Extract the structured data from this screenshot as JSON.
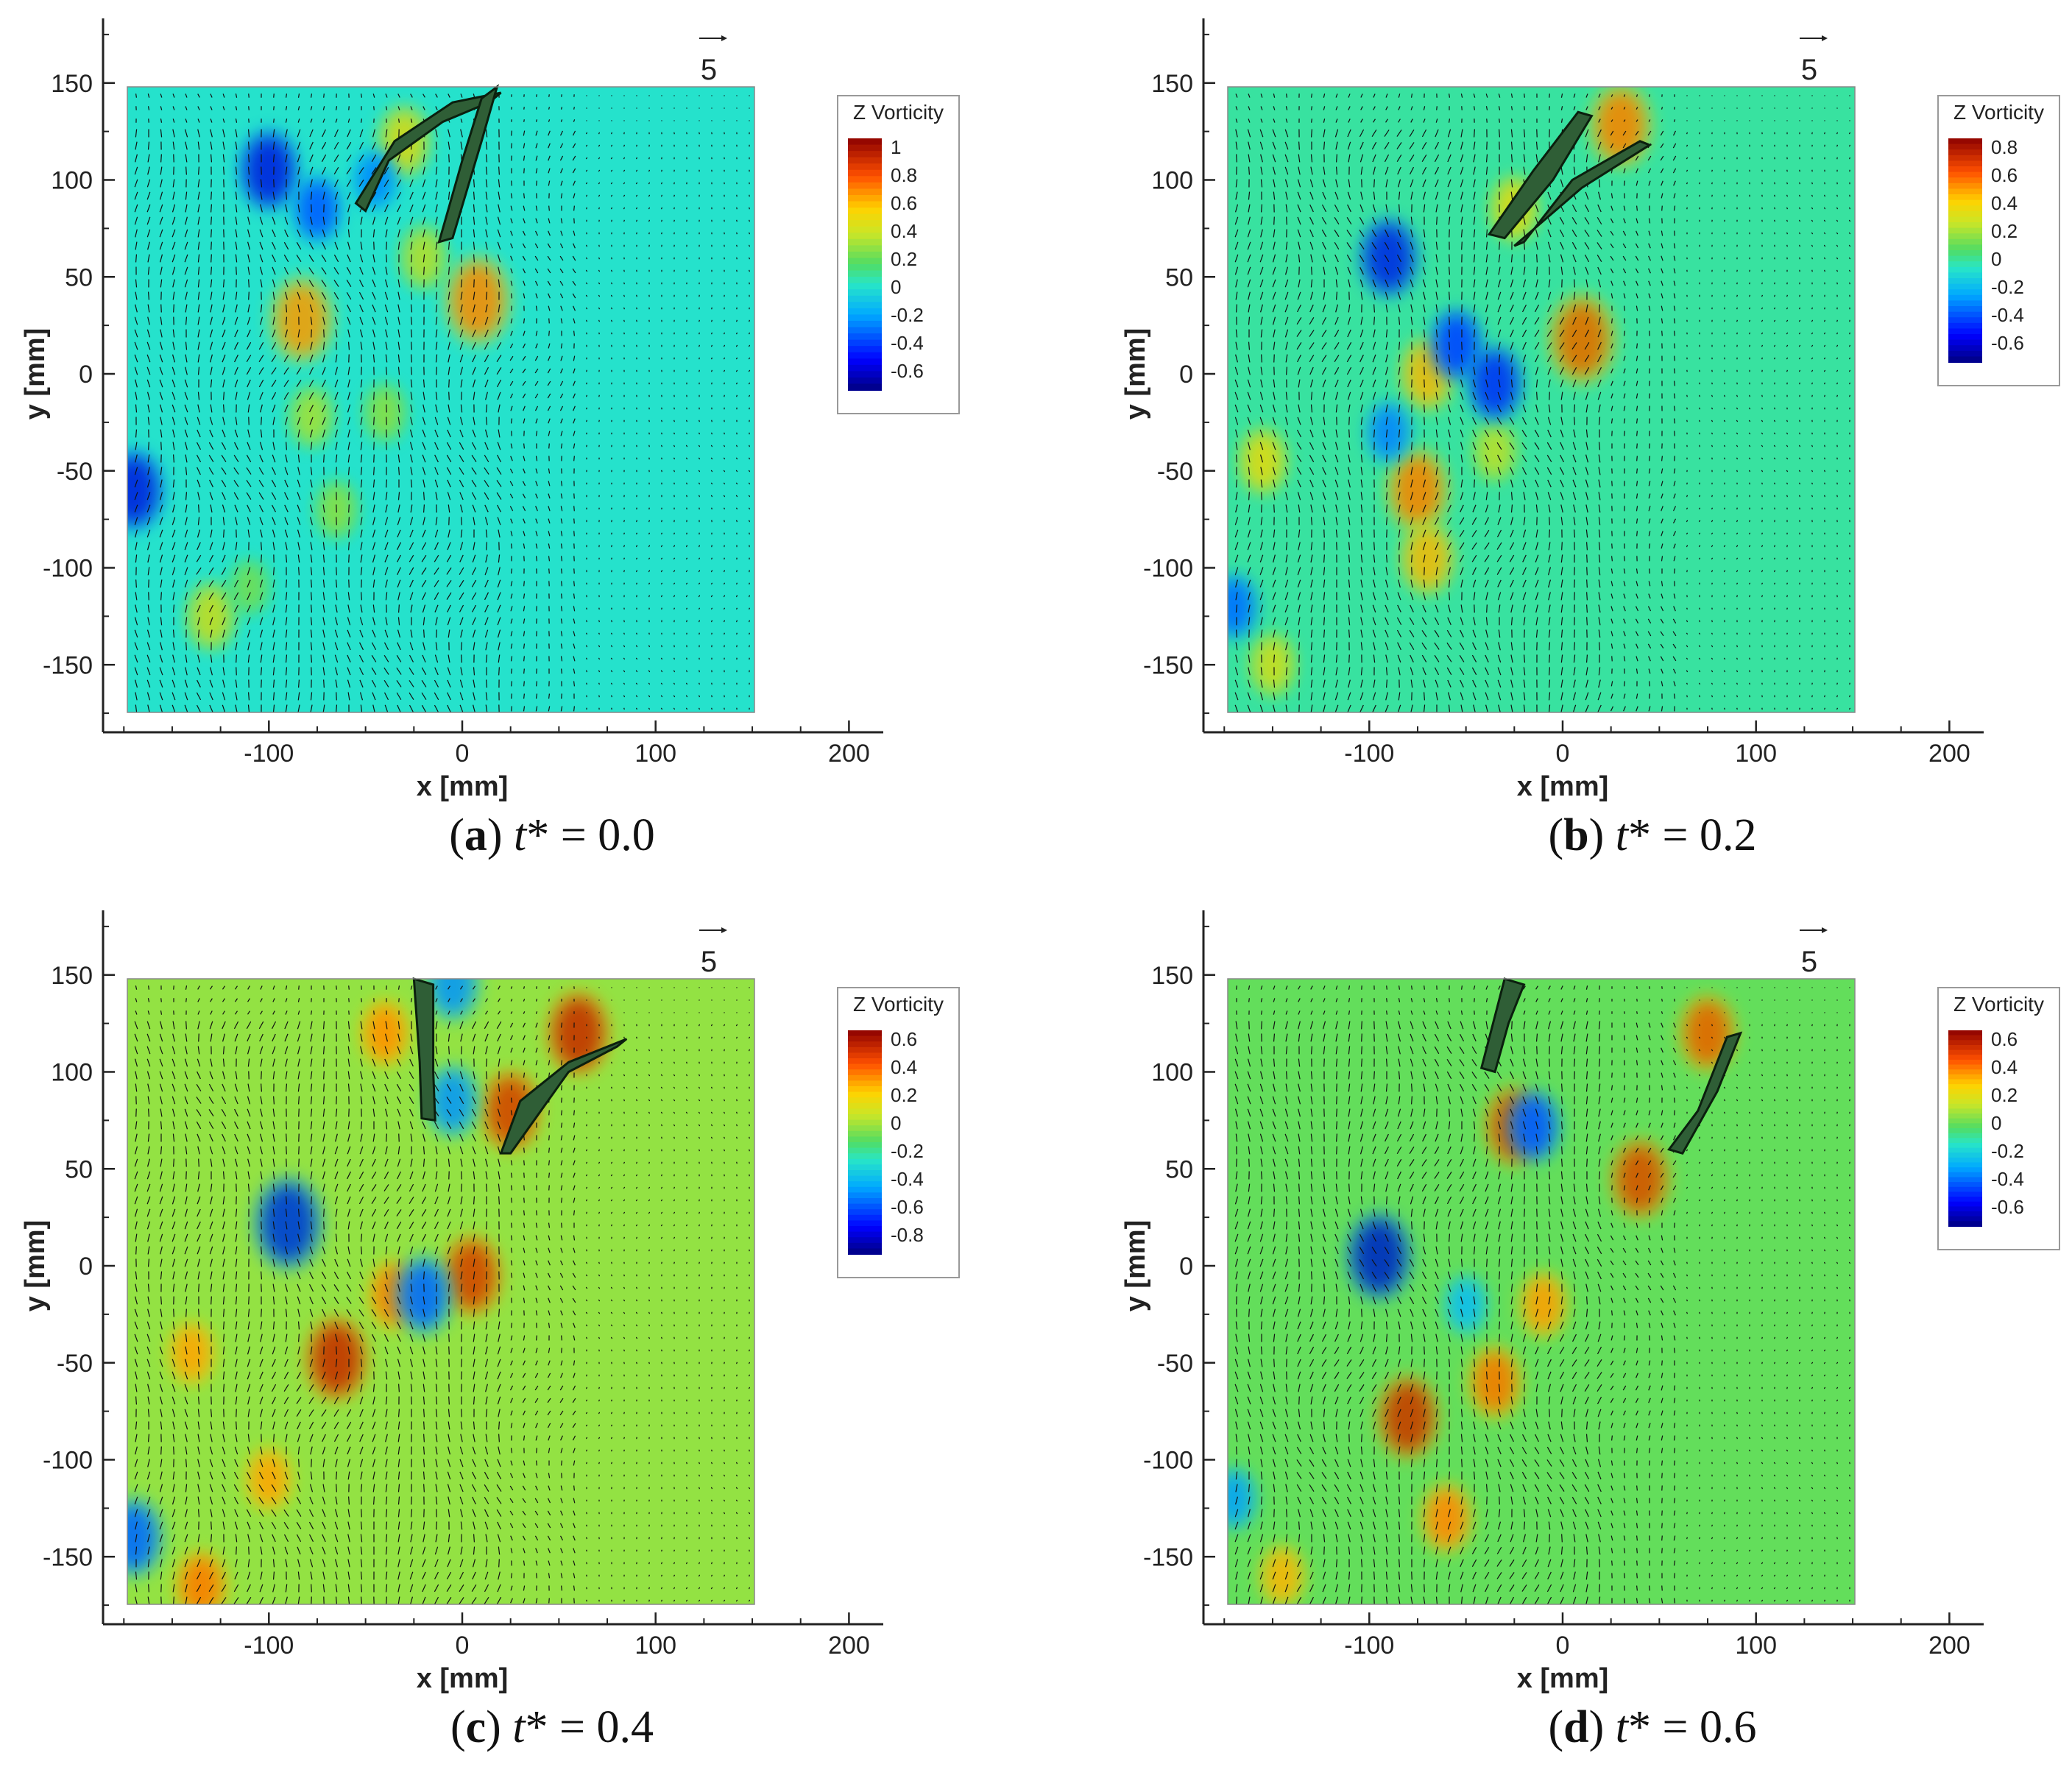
{
  "figure": {
    "x_axis_label": "x [mm]",
    "y_axis_label": "y [mm]",
    "colorbar_title": "Z Vorticity",
    "reference_vector_label": "5",
    "x_ticks": [
      "-100",
      "0",
      "100",
      "200"
    ],
    "y_ticks": [
      "150",
      "100",
      "50",
      "0",
      "-50",
      "-100",
      "-150"
    ]
  },
  "panels": [
    {
      "letter": "a",
      "paren_open": "(",
      "paren_close": ")",
      "t_symbol": "t",
      "t_suffix": "* = 0.0",
      "colorbar_labels": [
        "1",
        "0.8",
        "0.6",
        "0.4",
        "0.2",
        "0",
        "-0.2",
        "-0.4",
        "-0.6"
      ]
    },
    {
      "letter": "b",
      "paren_open": "(",
      "paren_close": ")",
      "t_symbol": "t",
      "t_suffix": "* = 0.2",
      "colorbar_labels": [
        "0.8",
        "0.6",
        "0.4",
        "0.2",
        "0",
        "-0.2",
        "-0.4",
        "-0.6"
      ]
    },
    {
      "letter": "c",
      "paren_open": "(",
      "paren_close": ")",
      "t_symbol": "t",
      "t_suffix": "* = 0.4",
      "colorbar_labels": [
        "0.6",
        "0.4",
        "0.2",
        "0",
        "-0.2",
        "-0.4",
        "-0.6",
        "-0.8"
      ]
    },
    {
      "letter": "d",
      "paren_open": "(",
      "paren_close": ")",
      "t_symbol": "t",
      "t_suffix": "* = 0.6",
      "colorbar_labels": [
        "0.6",
        "0.4",
        "0.2",
        "0",
        "-0.2",
        "-0.4",
        "-0.6"
      ]
    }
  ],
  "chart_data": [
    {
      "type": "heatmap",
      "title": "(a) t* = 0.0",
      "xlabel": "x [mm]",
      "ylabel": "y [mm]",
      "xlim": [
        -185,
        220
      ],
      "ylim": [
        -185,
        185
      ],
      "x_ticks": [
        -100,
        0,
        100,
        200
      ],
      "y_ticks": [
        -150,
        -100,
        -50,
        0,
        50,
        100,
        150
      ],
      "field_extent": {
        "x": [
          -172,
          152
        ],
        "y": [
          -174,
          148
        ]
      },
      "colorbar": {
        "title": "Z Vorticity",
        "min": -0.7,
        "max": 1.0,
        "ticks": [
          1,
          0.8,
          0.6,
          0.4,
          0.2,
          0,
          -0.2,
          -0.4,
          -0.6
        ]
      },
      "reference_vector": 5,
      "vortex_blobs": [
        {
          "x": 8,
          "y": 38,
          "value": 0.75
        },
        {
          "x": -30,
          "y": 120,
          "value": 0.5
        },
        {
          "x": -20,
          "y": 60,
          "value": 0.4
        },
        {
          "x": -83,
          "y": 28,
          "value": 0.7
        },
        {
          "x": -78,
          "y": -22,
          "value": 0.35
        },
        {
          "x": -65,
          "y": -70,
          "value": 0.3
        },
        {
          "x": -130,
          "y": -125,
          "value": 0.45
        },
        {
          "x": -110,
          "y": -110,
          "value": 0.25
        },
        {
          "x": -40,
          "y": -20,
          "value": 0.3
        },
        {
          "x": -100,
          "y": 105,
          "value": -0.6
        },
        {
          "x": -75,
          "y": 85,
          "value": -0.4
        },
        {
          "x": -45,
          "y": 100,
          "value": -0.3
        },
        {
          "x": -170,
          "y": -60,
          "value": -0.6
        }
      ]
    },
    {
      "type": "heatmap",
      "title": "(b) t* = 0.2",
      "xlabel": "x [mm]",
      "ylabel": "y [mm]",
      "xlim": [
        -185,
        220
      ],
      "ylim": [
        -185,
        185
      ],
      "x_ticks": [
        -100,
        0,
        100,
        200
      ],
      "y_ticks": [
        -150,
        -100,
        -50,
        0,
        50,
        100,
        150
      ],
      "field_extent": {
        "x": [
          -172,
          152
        ],
        "y": [
          -174,
          148
        ]
      },
      "colorbar": {
        "title": "Z Vorticity",
        "min": -0.7,
        "max": 0.85,
        "ticks": [
          0.8,
          0.6,
          0.4,
          0.2,
          0,
          -0.2,
          -0.4,
          -0.6
        ]
      },
      "reference_vector": 5,
      "vortex_blobs": [
        {
          "x": 10,
          "y": 18,
          "value": 0.75
        },
        {
          "x": 30,
          "y": 128,
          "value": 0.65
        },
        {
          "x": -25,
          "y": 85,
          "value": 0.4
        },
        {
          "x": -70,
          "y": 0,
          "value": 0.5
        },
        {
          "x": -75,
          "y": -60,
          "value": 0.65
        },
        {
          "x": -70,
          "y": -95,
          "value": 0.5
        },
        {
          "x": -35,
          "y": -40,
          "value": 0.3
        },
        {
          "x": -150,
          "y": -150,
          "value": 0.35
        },
        {
          "x": -155,
          "y": -45,
          "value": 0.4
        },
        {
          "x": -90,
          "y": 60,
          "value": -0.6
        },
        {
          "x": -55,
          "y": 15,
          "value": -0.5
        },
        {
          "x": -35,
          "y": -5,
          "value": -0.55
        },
        {
          "x": -90,
          "y": -30,
          "value": -0.35
        },
        {
          "x": -170,
          "y": -120,
          "value": -0.4
        }
      ]
    },
    {
      "type": "heatmap",
      "title": "(c) t* = 0.4",
      "xlabel": "x [mm]",
      "ylabel": "y [mm]",
      "xlim": [
        -185,
        220
      ],
      "ylim": [
        -185,
        185
      ],
      "x_ticks": [
        -100,
        0,
        100,
        200
      ],
      "y_ticks": [
        -150,
        -100,
        -50,
        0,
        50,
        100,
        150
      ],
      "field_extent": {
        "x": [
          -172,
          152
        ],
        "y": [
          -174,
          148
        ]
      },
      "colorbar": {
        "title": "Z Vorticity",
        "min": -0.85,
        "max": 0.65,
        "ticks": [
          0.6,
          0.4,
          0.2,
          0,
          -0.2,
          -0.4,
          -0.6,
          -0.8
        ]
      },
      "reference_vector": 5,
      "vortex_blobs": [
        {
          "x": 60,
          "y": 120,
          "value": 0.65
        },
        {
          "x": 25,
          "y": 80,
          "value": 0.6
        },
        {
          "x": -40,
          "y": 120,
          "value": 0.4
        },
        {
          "x": 5,
          "y": -5,
          "value": 0.6
        },
        {
          "x": -35,
          "y": -15,
          "value": 0.45
        },
        {
          "x": -65,
          "y": -48,
          "value": 0.65
        },
        {
          "x": -100,
          "y": -110,
          "value": 0.35
        },
        {
          "x": -135,
          "y": -165,
          "value": 0.45
        },
        {
          "x": -140,
          "y": -45,
          "value": 0.35
        },
        {
          "x": -90,
          "y": 22,
          "value": -0.8
        },
        {
          "x": -20,
          "y": -15,
          "value": -0.6
        },
        {
          "x": -5,
          "y": 85,
          "value": -0.5
        },
        {
          "x": -5,
          "y": 145,
          "value": -0.5
        },
        {
          "x": -170,
          "y": -140,
          "value": -0.6
        }
      ]
    },
    {
      "type": "heatmap",
      "title": "(d) t* = 0.6",
      "xlabel": "x [mm]",
      "ylabel": "y [mm]",
      "xlim": [
        -185,
        220
      ],
      "ylim": [
        -185,
        185
      ],
      "x_ticks": [
        -100,
        0,
        100,
        200
      ],
      "y_ticks": [
        -150,
        -100,
        -50,
        0,
        50,
        100,
        150
      ],
      "field_extent": {
        "x": [
          -172,
          152
        ],
        "y": [
          -174,
          148
        ]
      },
      "colorbar": {
        "title": "Z Vorticity",
        "min": -0.7,
        "max": 0.65,
        "ticks": [
          0.6,
          0.4,
          0.2,
          0,
          -0.2,
          -0.4,
          -0.6
        ]
      },
      "reference_vector": 5,
      "vortex_blobs": [
        {
          "x": 40,
          "y": 45,
          "value": 0.6
        },
        {
          "x": 75,
          "y": 120,
          "value": 0.55
        },
        {
          "x": -25,
          "y": 72,
          "value": 0.6
        },
        {
          "x": -80,
          "y": -78,
          "value": 0.65
        },
        {
          "x": -35,
          "y": -60,
          "value": 0.5
        },
        {
          "x": -60,
          "y": -130,
          "value": 0.45
        },
        {
          "x": -10,
          "y": -20,
          "value": 0.4
        },
        {
          "x": -145,
          "y": -160,
          "value": 0.35
        },
        {
          "x": -95,
          "y": 5,
          "value": -0.7
        },
        {
          "x": -15,
          "y": 72,
          "value": -0.5
        },
        {
          "x": -50,
          "y": -20,
          "value": -0.3
        },
        {
          "x": -170,
          "y": -120,
          "value": -0.35
        }
      ]
    }
  ]
}
